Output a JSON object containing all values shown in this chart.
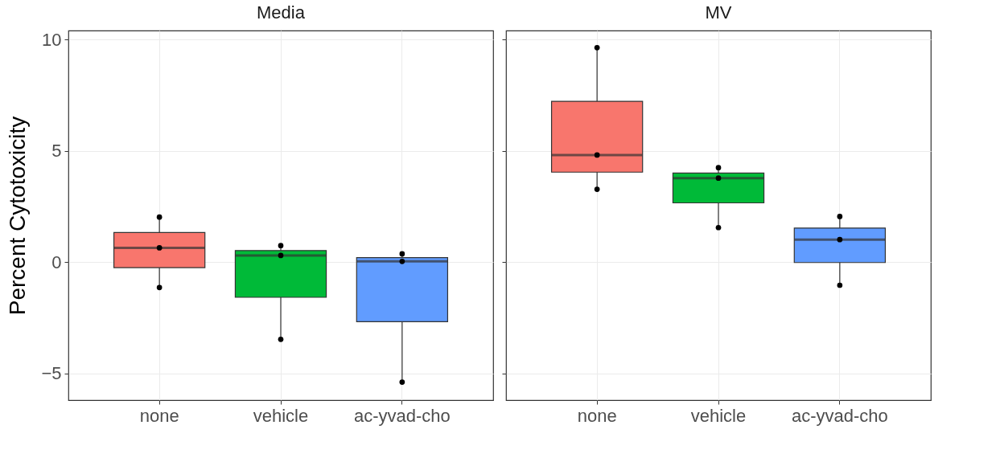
{
  "chart_data": [
    {
      "type": "box",
      "title": "Media",
      "ylabel": "Percent Cytotoxicity",
      "categories": [
        "none",
        "vehicle",
        "ac-yvad-cho"
      ],
      "ylim": [
        -6.2,
        10.4
      ],
      "yticks": [
        -5,
        0,
        5,
        10
      ],
      "grid": true,
      "series": [
        {
          "type": "box",
          "colors": [
            "#f8766d",
            "#00ba38",
            "#619cff"
          ],
          "boxes": [
            {
              "low": -1.14,
              "q1": -0.25,
              "median": 0.64,
              "q3": 1.33,
              "high": 2.02
            },
            {
              "low": -3.47,
              "q1": -1.58,
              "median": 0.3,
              "q3": 0.52,
              "high": 0.74
            },
            {
              "low": -5.39,
              "q1": -2.68,
              "median": 0.03,
              "q3": 0.2,
              "high": 0.37
            }
          ]
        },
        {
          "type": "scatter",
          "color": "#000000",
          "x": [
            "none",
            "none",
            "none",
            "vehicle",
            "vehicle",
            "vehicle",
            "ac-yvad-cho",
            "ac-yvad-cho",
            "ac-yvad-cho"
          ],
          "values": [
            2.02,
            0.64,
            -1.14,
            0.74,
            0.3,
            -3.47,
            0.37,
            0.03,
            -5.39
          ]
        }
      ]
    },
    {
      "type": "box",
      "title": "MV",
      "categories": [
        "none",
        "vehicle",
        "ac-yvad-cho"
      ],
      "ylim": [
        -6.2,
        10.4
      ],
      "yticks": [
        -5,
        0,
        5,
        10
      ],
      "grid": true,
      "tick_labels": "x",
      "series": [
        {
          "type": "box",
          "colors": [
            "#f8766d",
            "#00ba38",
            "#619cff"
          ],
          "boxes": [
            {
              "low": 3.27,
              "q1": 4.04,
              "median": 4.81,
              "q3": 7.22,
              "high": 9.63
            },
            {
              "low": 1.55,
              "q1": 2.66,
              "median": 3.77,
              "q3": 4.0,
              "high": 4.24
            },
            {
              "low": -1.04,
              "q1": -0.02,
              "median": 1.01,
              "q3": 1.53,
              "high": 2.05
            }
          ]
        },
        {
          "type": "scatter",
          "color": "#000000",
          "x": [
            "none",
            "none",
            "none",
            "vehicle",
            "vehicle",
            "vehicle",
            "ac-yvad-cho",
            "ac-yvad-cho",
            "ac-yvad-cho"
          ],
          "values": [
            9.63,
            4.81,
            3.27,
            4.24,
            3.77,
            1.55,
            2.05,
            1.01,
            -1.04
          ]
        }
      ]
    }
  ]
}
